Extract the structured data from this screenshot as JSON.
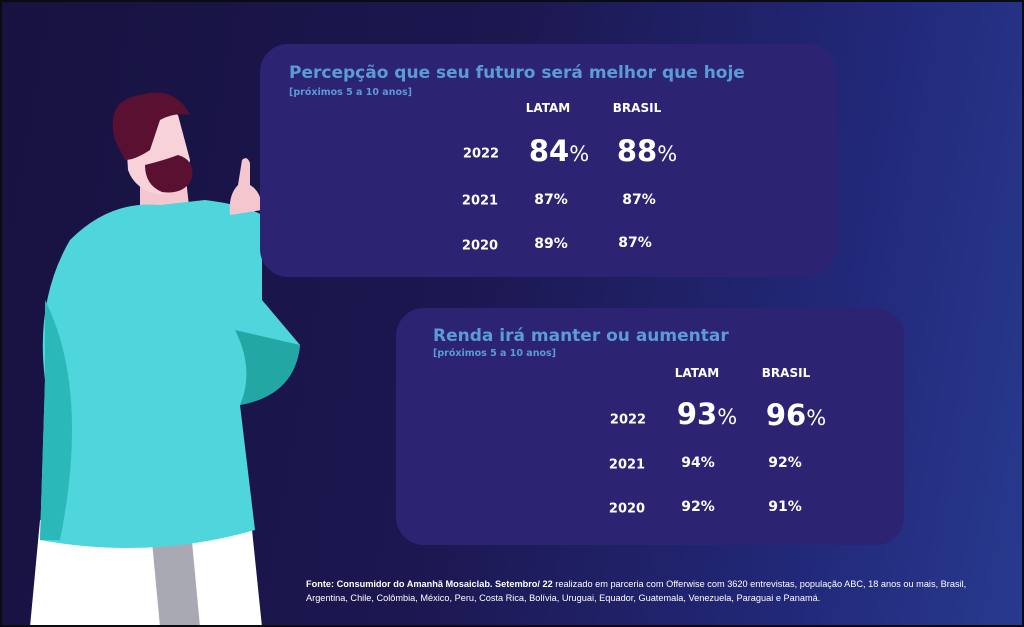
{
  "cards": [
    {
      "title": "Percepção que seu futuro será melhor que hoje",
      "subtitle": "[próximos 5 a 10 anos]",
      "columns": [
        "LATAM",
        "BRASIL"
      ],
      "rows": [
        {
          "year": "2022",
          "latam": "84",
          "brasil": "88"
        },
        {
          "year": "2021",
          "latam": "87%",
          "brasil": "87%"
        },
        {
          "year": "2020",
          "latam": "89%",
          "brasil": "87%"
        }
      ]
    },
    {
      "title": "Renda irá manter ou aumentar",
      "subtitle": "[próximos 5 a 10 anos]",
      "columns": [
        "LATAM",
        "BRASIL"
      ],
      "rows": [
        {
          "year": "2022",
          "latam": "93",
          "brasil": "96"
        },
        {
          "year": "2021",
          "latam": "94%",
          "brasil": "92%"
        },
        {
          "year": "2020",
          "latam": "92%",
          "brasil": "91%"
        }
      ]
    }
  ],
  "percent_sign": "%",
  "footer": {
    "bold": "Fonte: Consumidor do Amanhã Mosaiclab. Setembro/ 22",
    "text": " realizado em parceria com Offerwise com 3620 entrevistas, população ABC, 18 anos ou mais, Brasil, Argentina, Chile, Colômbia, México, Peru, Costa Rica, Bolívia, Uruguai, Equador, Guatemala, Venezuela, Paraguai e Panamá."
  },
  "colors": {
    "card": "#2d2373",
    "title": "#5b9bd8",
    "sweater": "#4fd6dc",
    "hair": "#5a1030"
  }
}
